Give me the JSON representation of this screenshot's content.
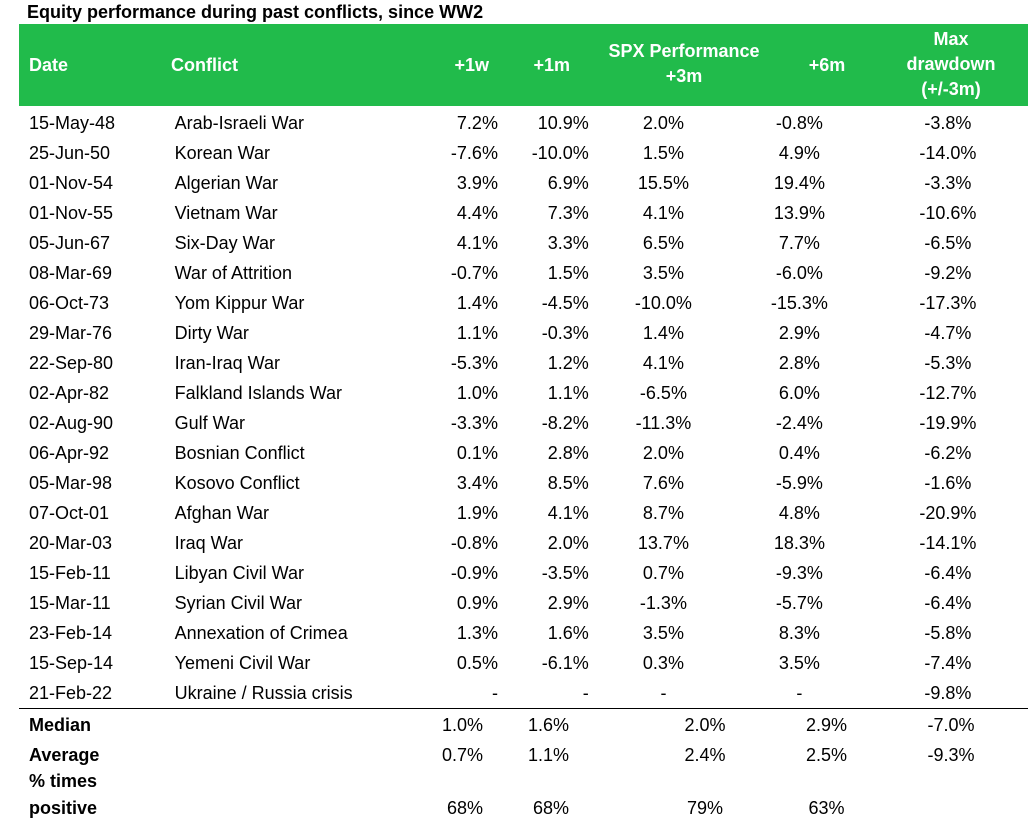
{
  "title": "Equity performance during past conflicts, since WW2",
  "header": {
    "date": "Date",
    "conflict": "Conflict",
    "w1": "+1w",
    "m1": "+1m",
    "spx_line1": "SPX Performance",
    "spx_line2": "+3m",
    "m6": "+6m",
    "dd_line1": "Max",
    "dd_line2": "drawdown",
    "dd_line3": "(+/-3m)"
  },
  "rows": [
    {
      "date": "15-May-48",
      "conflict": "Arab-Israeli War",
      "w1": "7.2%",
      "m1": "10.9%",
      "m3": "2.0%",
      "m6": "-0.8%",
      "dd": "-3.8%"
    },
    {
      "date": "25-Jun-50",
      "conflict": "Korean War",
      "w1": "-7.6%",
      "m1": "-10.0%",
      "m3": "1.5%",
      "m6": "4.9%",
      "dd": "-14.0%"
    },
    {
      "date": "01-Nov-54",
      "conflict": "Algerian War",
      "w1": "3.9%",
      "m1": "6.9%",
      "m3": "15.5%",
      "m6": "19.4%",
      "dd": "-3.3%"
    },
    {
      "date": "01-Nov-55",
      "conflict": "Vietnam War",
      "w1": "4.4%",
      "m1": "7.3%",
      "m3": "4.1%",
      "m6": "13.9%",
      "dd": "-10.6%"
    },
    {
      "date": "05-Jun-67",
      "conflict": "Six-Day War",
      "w1": "4.1%",
      "m1": "3.3%",
      "m3": "6.5%",
      "m6": "7.7%",
      "dd": "-6.5%"
    },
    {
      "date": "08-Mar-69",
      "conflict": "War of Attrition",
      "w1": "-0.7%",
      "m1": "1.5%",
      "m3": "3.5%",
      "m6": "-6.0%",
      "dd": "-9.2%"
    },
    {
      "date": "06-Oct-73",
      "conflict": "Yom Kippur War",
      "w1": "1.4%",
      "m1": "-4.5%",
      "m3": "-10.0%",
      "m6": "-15.3%",
      "dd": "-17.3%"
    },
    {
      "date": "29-Mar-76",
      "conflict": "Dirty War",
      "w1": "1.1%",
      "m1": "-0.3%",
      "m3": "1.4%",
      "m6": "2.9%",
      "dd": "-4.7%"
    },
    {
      "date": "22-Sep-80",
      "conflict": "Iran-Iraq War",
      "w1": "-5.3%",
      "m1": "1.2%",
      "m3": "4.1%",
      "m6": "2.8%",
      "dd": "-5.3%"
    },
    {
      "date": "02-Apr-82",
      "conflict": "Falkland Islands War",
      "w1": "1.0%",
      "m1": "1.1%",
      "m3": "-6.5%",
      "m6": "6.0%",
      "dd": "-12.7%"
    },
    {
      "date": "02-Aug-90",
      "conflict": "Gulf War",
      "w1": "-3.3%",
      "m1": "-8.2%",
      "m3": "-11.3%",
      "m6": "-2.4%",
      "dd": "-19.9%"
    },
    {
      "date": "06-Apr-92",
      "conflict": "Bosnian Conflict",
      "w1": "0.1%",
      "m1": "2.8%",
      "m3": "2.0%",
      "m6": "0.4%",
      "dd": "-6.2%"
    },
    {
      "date": "05-Mar-98",
      "conflict": "Kosovo Conflict",
      "w1": "3.4%",
      "m1": "8.5%",
      "m3": "7.6%",
      "m6": "-5.9%",
      "dd": "-1.6%"
    },
    {
      "date": "07-Oct-01",
      "conflict": "Afghan War",
      "w1": "1.9%",
      "m1": "4.1%",
      "m3": "8.7%",
      "m6": "4.8%",
      "dd": "-20.9%"
    },
    {
      "date": "20-Mar-03",
      "conflict": "Iraq War",
      "w1": "-0.8%",
      "m1": "2.0%",
      "m3": "13.7%",
      "m6": "18.3%",
      "dd": "-14.1%"
    },
    {
      "date": "15-Feb-11",
      "conflict": "Libyan Civil War",
      "w1": "-0.9%",
      "m1": "-3.5%",
      "m3": "0.7%",
      "m6": "-9.3%",
      "dd": "-6.4%"
    },
    {
      "date": "15-Mar-11",
      "conflict": "Syrian Civil War",
      "w1": "0.9%",
      "m1": "2.9%",
      "m3": "-1.3%",
      "m6": "-5.7%",
      "dd": "-6.4%"
    },
    {
      "date": "23-Feb-14",
      "conflict": "Annexation of Crimea",
      "w1": "1.3%",
      "m1": "1.6%",
      "m3": "3.5%",
      "m6": "8.3%",
      "dd": "-5.8%"
    },
    {
      "date": "15-Sep-14",
      "conflict": "Yemeni Civil War",
      "w1": "0.5%",
      "m1": "-6.1%",
      "m3": "0.3%",
      "m6": "3.5%",
      "dd": "-7.4%"
    },
    {
      "date": "21-Feb-22",
      "conflict": "Ukraine / Russia crisis",
      "w1": "-",
      "m1": "-",
      "m3": "-",
      "m6": "-",
      "dd": "-9.8%"
    }
  ],
  "summary": {
    "median": {
      "label": "Median",
      "w1": "1.0%",
      "m1": "1.6%",
      "m3": "2.0%",
      "m6": "2.9%",
      "dd": "-7.0%"
    },
    "average": {
      "label": "Average",
      "w1": "0.7%",
      "m1": "1.1%",
      "m3": "2.4%",
      "m6": "2.5%",
      "dd": "-9.3%"
    },
    "positive": {
      "label_line1": "% times",
      "label_line2": "positive",
      "w1": "68%",
      "m1": "68%",
      "m3": "79%",
      "m6": "63%"
    }
  }
}
